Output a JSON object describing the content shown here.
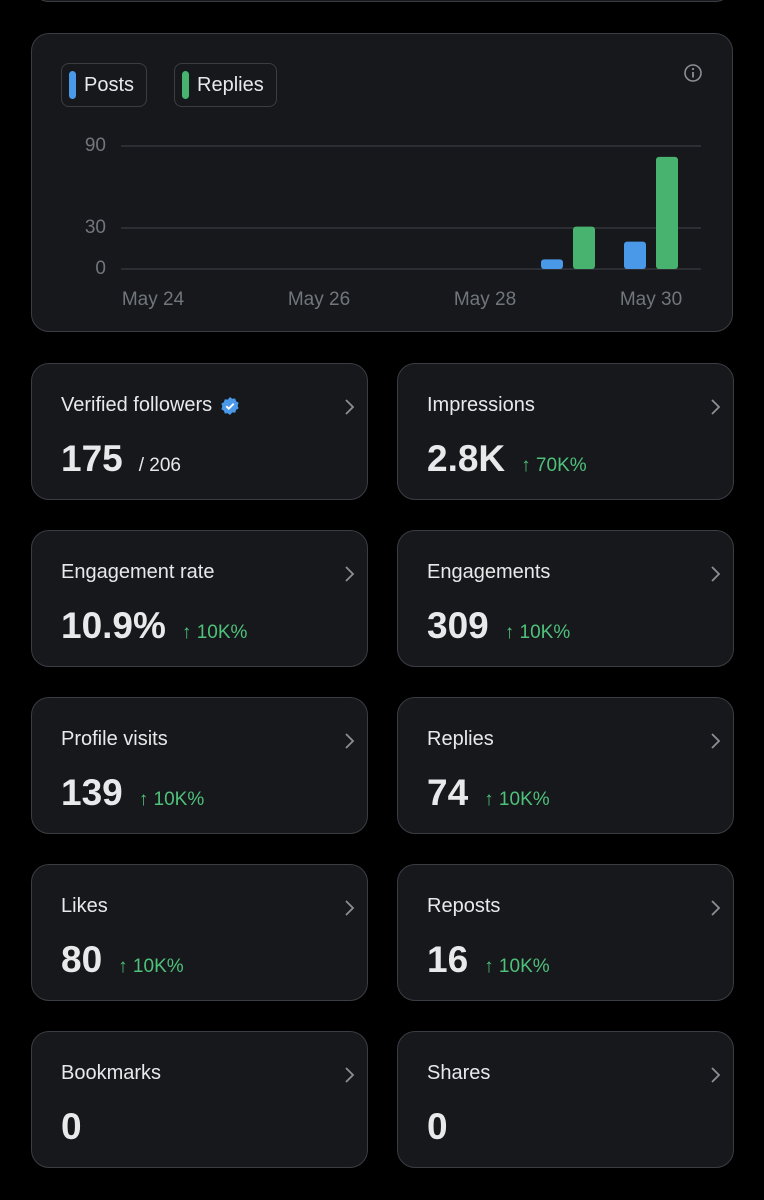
{
  "chart_data": {
    "type": "bar",
    "categories": [
      "May 24",
      null,
      "May 26",
      null,
      "May 28",
      null,
      "May 30"
    ],
    "series": [
      {
        "name": "Posts",
        "color": "#4a99e9",
        "values": [
          0,
          0,
          0,
          0,
          0,
          7,
          20
        ]
      },
      {
        "name": "Replies",
        "color": "#47b36f",
        "values": [
          0,
          0,
          0,
          0,
          0,
          31,
          82
        ]
      }
    ],
    "ylim": [
      0,
      90
    ],
    "yticks": [
      0,
      30,
      90
    ],
    "grid": true
  },
  "cards": [
    {
      "label": "Verified followers",
      "value": "175",
      "note": "/ 206",
      "verified": true
    },
    {
      "label": "Impressions",
      "value": "2.8K",
      "change": "↑ 70K%"
    },
    {
      "label": "Engagement rate",
      "value": "10.9%",
      "change": "↑ 10K%"
    },
    {
      "label": "Engagements",
      "value": "309",
      "change": "↑ 10K%"
    },
    {
      "label": "Profile visits",
      "value": "139",
      "change": "↑ 10K%"
    },
    {
      "label": "Replies",
      "value": "74",
      "change": "↑ 10K%"
    },
    {
      "label": "Likes",
      "value": "80",
      "change": "↑ 10K%"
    },
    {
      "label": "Reposts",
      "value": "16",
      "change": "↑ 10K%"
    },
    {
      "label": "Bookmarks",
      "value": "0"
    },
    {
      "label": "Shares",
      "value": "0"
    }
  ]
}
